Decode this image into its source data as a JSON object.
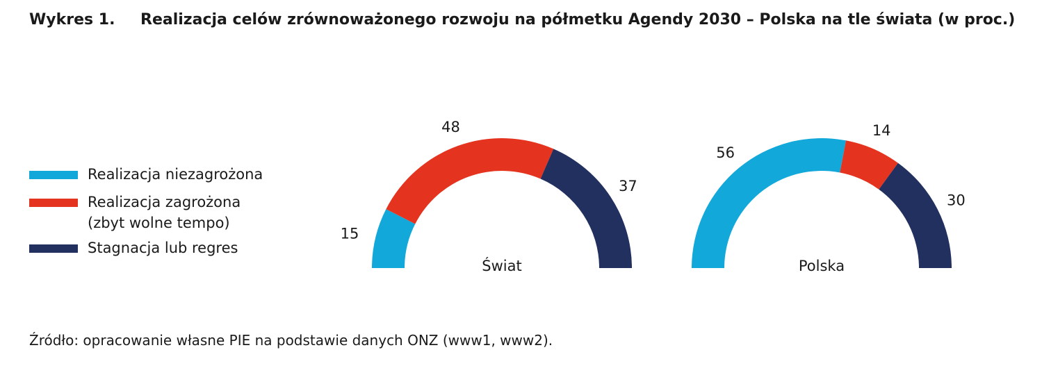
{
  "title": {
    "number": "Wykres 1.",
    "text": "Realizacja celów zrównoważonego rozwoju na półmetku Agendy 2030 – Polska na tle świata (w proc.)"
  },
  "legend": [
    {
      "label": "Realizacja niezagrożona",
      "color": "#12a8d9"
    },
    {
      "label": "Realizacja zagrożona\n(zbyt wolne tempo)",
      "color": "#e4341f"
    },
    {
      "label": "Stagnacja lub regres",
      "color": "#22305f"
    }
  ],
  "chart_data": [
    {
      "type": "pie",
      "variant": "semicircle-donut",
      "name": "Świat",
      "categories": [
        "Realizacja niezagrożona",
        "Realizacja zagrożona (zbyt wolne tempo)",
        "Stagnacja lub regres"
      ],
      "values": [
        15,
        48,
        37
      ],
      "value_labels": [
        "15",
        "48",
        "37"
      ],
      "colors": [
        "#12a8d9",
        "#e4341f",
        "#22305f"
      ]
    },
    {
      "type": "pie",
      "variant": "semicircle-donut",
      "name": "Polska",
      "categories": [
        "Realizacja niezagrożona",
        "Realizacja zagrożona (zbyt wolne tempo)",
        "Stagnacja lub regres"
      ],
      "values": [
        56,
        14,
        30
      ],
      "value_labels": [
        "56",
        "14",
        "30"
      ],
      "colors": [
        "#12a8d9",
        "#e4341f",
        "#22305f"
      ]
    }
  ],
  "source": "Źródło: opracowanie własne PIE na podstawie danych ONZ (www1, www2)."
}
